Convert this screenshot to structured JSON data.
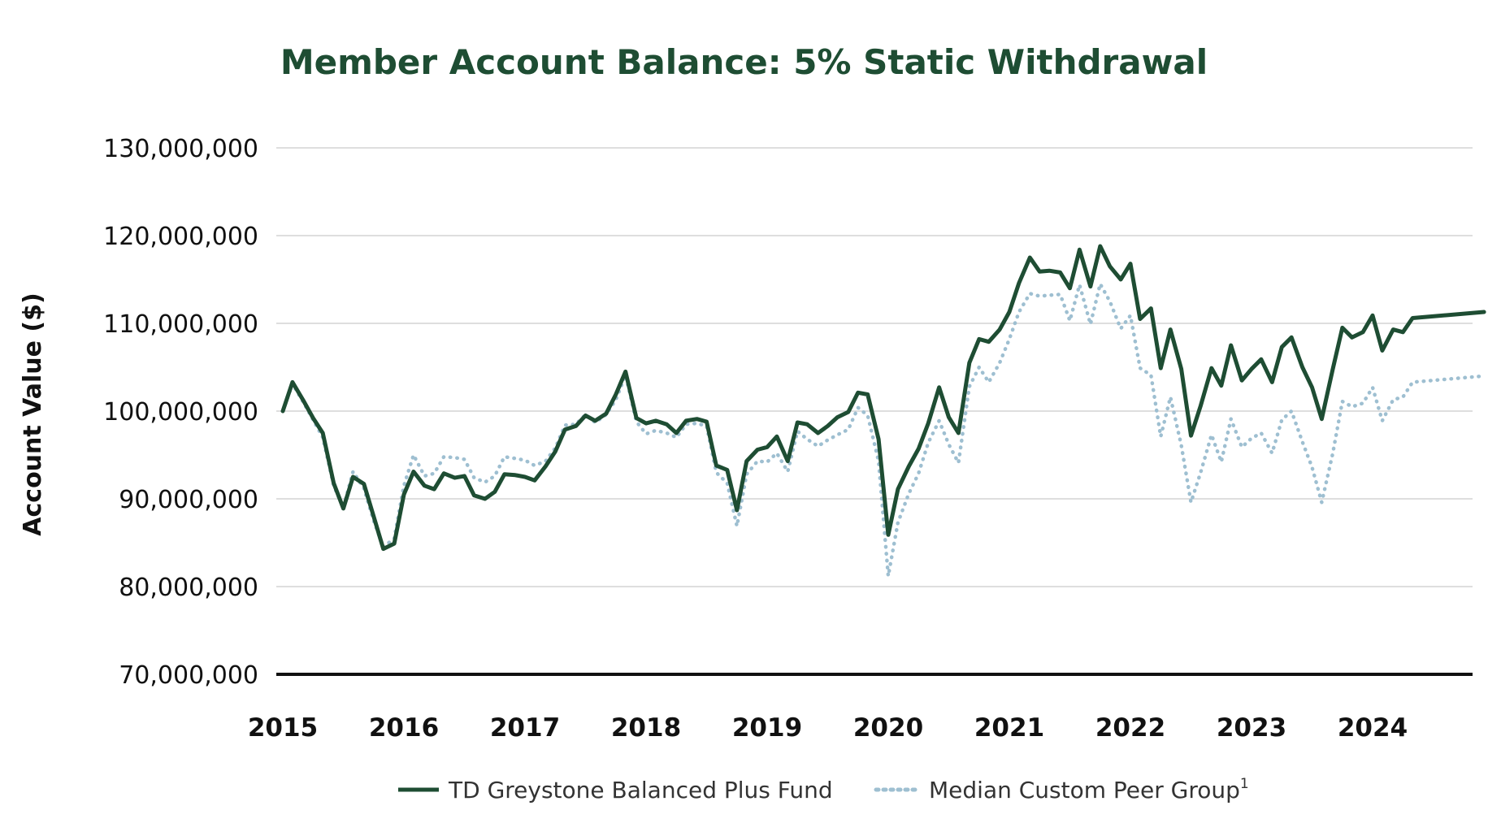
{
  "chart_data": {
    "type": "line",
    "title": "Member Account Balance: 5% Static Withdrawal",
    "ylabel": "Account Value ($)",
    "xlabel": "",
    "ylim": [
      70000000,
      130000000
    ],
    "xlim": [
      2015.0,
      2024.92
    ],
    "yticks": [
      {
        "value": 130000000,
        "label": "130,000,000"
      },
      {
        "value": 120000000,
        "label": "120,000,000"
      },
      {
        "value": 110000000,
        "label": "110,000,000"
      },
      {
        "value": 100000000,
        "label": "100,000,000"
      },
      {
        "value": 90000000,
        "label": "90,000,000"
      },
      {
        "value": 80000000,
        "label": "80,000,000"
      },
      {
        "value": 70000000,
        "label": "70,000,000"
      }
    ],
    "xticks": [
      {
        "value": 2015,
        "label": "2015"
      },
      {
        "value": 2016,
        "label": "2016"
      },
      {
        "value": 2017,
        "label": "2017"
      },
      {
        "value": 2018,
        "label": "2018"
      },
      {
        "value": 2019,
        "label": "2019"
      },
      {
        "value": 2020,
        "label": "2020"
      },
      {
        "value": 2021,
        "label": "2021"
      },
      {
        "value": 2022,
        "label": "2022"
      },
      {
        "value": 2023,
        "label": "2023"
      },
      {
        "value": 2024,
        "label": "2024"
      }
    ],
    "grid": true,
    "legend": "bottom",
    "series": [
      {
        "name": "TD Greystone Balanced Plus Fund",
        "color": "#1e4d33",
        "style": "solid",
        "points": [
          [
            2015.0,
            100000000
          ],
          [
            2015.08,
            103300000
          ],
          [
            2015.17,
            101200000
          ],
          [
            2015.25,
            99200000
          ],
          [
            2015.33,
            97500000
          ],
          [
            2015.42,
            91800000
          ],
          [
            2015.5,
            88900000
          ],
          [
            2015.58,
            92500000
          ],
          [
            2015.67,
            91700000
          ],
          [
            2015.75,
            88000000
          ],
          [
            2015.83,
            84300000
          ],
          [
            2015.92,
            84900000
          ],
          [
            2016.0,
            90500000
          ],
          [
            2016.08,
            93100000
          ],
          [
            2016.17,
            91500000
          ],
          [
            2016.25,
            91100000
          ],
          [
            2016.33,
            92900000
          ],
          [
            2016.42,
            92400000
          ],
          [
            2016.5,
            92600000
          ],
          [
            2016.58,
            90400000
          ],
          [
            2016.67,
            90000000
          ],
          [
            2016.75,
            90800000
          ],
          [
            2016.83,
            92800000
          ],
          [
            2016.92,
            92700000
          ],
          [
            2017.0,
            92500000
          ],
          [
            2017.08,
            92100000
          ],
          [
            2017.17,
            93700000
          ],
          [
            2017.25,
            95400000
          ],
          [
            2017.33,
            97900000
          ],
          [
            2017.42,
            98300000
          ],
          [
            2017.5,
            99500000
          ],
          [
            2017.58,
            98900000
          ],
          [
            2017.67,
            99700000
          ],
          [
            2017.75,
            101900000
          ],
          [
            2017.83,
            104500000
          ],
          [
            2017.92,
            99200000
          ],
          [
            2018.0,
            98600000
          ],
          [
            2018.08,
            98900000
          ],
          [
            2018.17,
            98500000
          ],
          [
            2018.25,
            97500000
          ],
          [
            2018.33,
            98900000
          ],
          [
            2018.42,
            99100000
          ],
          [
            2018.5,
            98800000
          ],
          [
            2018.58,
            93800000
          ],
          [
            2018.67,
            93300000
          ],
          [
            2018.75,
            88700000
          ],
          [
            2018.83,
            94300000
          ],
          [
            2018.92,
            95600000
          ],
          [
            2019.0,
            95900000
          ],
          [
            2019.08,
            97100000
          ],
          [
            2019.17,
            94300000
          ],
          [
            2019.25,
            98700000
          ],
          [
            2019.33,
            98500000
          ],
          [
            2019.42,
            97500000
          ],
          [
            2019.5,
            98300000
          ],
          [
            2019.58,
            99300000
          ],
          [
            2019.67,
            99900000
          ],
          [
            2019.75,
            102100000
          ],
          [
            2019.83,
            101900000
          ],
          [
            2019.92,
            96800000
          ],
          [
            2020.0,
            85900000
          ],
          [
            2020.08,
            91100000
          ],
          [
            2020.17,
            93700000
          ],
          [
            2020.25,
            95700000
          ],
          [
            2020.33,
            98600000
          ],
          [
            2020.42,
            102700000
          ],
          [
            2020.5,
            99300000
          ],
          [
            2020.58,
            97500000
          ],
          [
            2020.67,
            105500000
          ],
          [
            2020.75,
            108200000
          ],
          [
            2020.83,
            107900000
          ],
          [
            2020.92,
            109300000
          ],
          [
            2021.0,
            111300000
          ],
          [
            2021.08,
            114600000
          ],
          [
            2021.17,
            117500000
          ],
          [
            2021.25,
            115900000
          ],
          [
            2021.33,
            116000000
          ],
          [
            2021.42,
            115800000
          ],
          [
            2021.5,
            114000000
          ],
          [
            2021.58,
            118400000
          ],
          [
            2021.67,
            114200000
          ],
          [
            2021.75,
            118800000
          ],
          [
            2021.83,
            116500000
          ],
          [
            2021.92,
            115000000
          ],
          [
            2022.0,
            116800000
          ],
          [
            2022.08,
            110500000
          ],
          [
            2022.17,
            111700000
          ],
          [
            2022.25,
            104900000
          ],
          [
            2022.33,
            109300000
          ],
          [
            2022.42,
            104800000
          ],
          [
            2022.5,
            97200000
          ],
          [
            2022.58,
            100600000
          ],
          [
            2022.67,
            104900000
          ],
          [
            2022.75,
            102900000
          ],
          [
            2022.83,
            107500000
          ],
          [
            2022.92,
            103500000
          ],
          [
            2023.0,
            104800000
          ],
          [
            2023.08,
            105900000
          ],
          [
            2023.17,
            103300000
          ],
          [
            2023.25,
            107300000
          ],
          [
            2023.33,
            108400000
          ],
          [
            2023.42,
            105000000
          ],
          [
            2023.5,
            102700000
          ],
          [
            2023.58,
            99100000
          ],
          [
            2023.67,
            104700000
          ],
          [
            2023.75,
            109500000
          ],
          [
            2023.83,
            108400000
          ],
          [
            2023.92,
            109000000
          ],
          [
            2024.0,
            110900000
          ],
          [
            2024.08,
            106900000
          ],
          [
            2024.17,
            109300000
          ],
          [
            2024.25,
            109000000
          ],
          [
            2024.33,
            110600000
          ],
          [
            2024.92,
            111300000
          ]
        ]
      },
      {
        "name": "Median Custom Peer Group",
        "superscript": "1",
        "color": "#9ebfd1",
        "style": "dotted",
        "points": [
          [
            2015.0,
            100000000
          ],
          [
            2015.08,
            103100000
          ],
          [
            2015.17,
            101000000
          ],
          [
            2015.25,
            99000000
          ],
          [
            2015.33,
            97000000
          ],
          [
            2015.42,
            91500000
          ],
          [
            2015.5,
            89000000
          ],
          [
            2015.58,
            93100000
          ],
          [
            2015.67,
            91200000
          ],
          [
            2015.75,
            87500000
          ],
          [
            2015.83,
            84500000
          ],
          [
            2015.92,
            85500000
          ],
          [
            2016.0,
            91500000
          ],
          [
            2016.08,
            95000000
          ],
          [
            2016.17,
            92600000
          ],
          [
            2016.25,
            92900000
          ],
          [
            2016.33,
            94800000
          ],
          [
            2016.42,
            94700000
          ],
          [
            2016.5,
            94500000
          ],
          [
            2016.58,
            92400000
          ],
          [
            2016.67,
            91900000
          ],
          [
            2016.75,
            92600000
          ],
          [
            2016.83,
            94800000
          ],
          [
            2016.92,
            94600000
          ],
          [
            2017.0,
            94400000
          ],
          [
            2017.08,
            93800000
          ],
          [
            2017.17,
            94300000
          ],
          [
            2017.25,
            95800000
          ],
          [
            2017.33,
            98400000
          ],
          [
            2017.42,
            98500000
          ],
          [
            2017.5,
            99600000
          ],
          [
            2017.58,
            98700000
          ],
          [
            2017.67,
            99600000
          ],
          [
            2017.75,
            101300000
          ],
          [
            2017.83,
            104100000
          ],
          [
            2017.92,
            98800000
          ],
          [
            2018.0,
            97400000
          ],
          [
            2018.08,
            97800000
          ],
          [
            2018.17,
            97500000
          ],
          [
            2018.25,
            97000000
          ],
          [
            2018.33,
            98500000
          ],
          [
            2018.42,
            98600000
          ],
          [
            2018.5,
            98300000
          ],
          [
            2018.58,
            93000000
          ],
          [
            2018.67,
            91800000
          ],
          [
            2018.75,
            86900000
          ],
          [
            2018.83,
            92800000
          ],
          [
            2018.92,
            94300000
          ],
          [
            2019.0,
            94200000
          ],
          [
            2019.08,
            95200000
          ],
          [
            2019.17,
            93100000
          ],
          [
            2019.25,
            97700000
          ],
          [
            2019.33,
            96800000
          ],
          [
            2019.42,
            96000000
          ],
          [
            2019.5,
            96700000
          ],
          [
            2019.58,
            97300000
          ],
          [
            2019.67,
            97900000
          ],
          [
            2019.75,
            100400000
          ],
          [
            2019.83,
            99500000
          ],
          [
            2019.92,
            94300000
          ],
          [
            2020.0,
            81200000
          ],
          [
            2020.08,
            87300000
          ],
          [
            2020.17,
            90600000
          ],
          [
            2020.25,
            92900000
          ],
          [
            2020.33,
            96400000
          ],
          [
            2020.42,
            98900000
          ],
          [
            2020.5,
            96200000
          ],
          [
            2020.58,
            94100000
          ],
          [
            2020.67,
            102800000
          ],
          [
            2020.75,
            105000000
          ],
          [
            2020.83,
            103300000
          ],
          [
            2020.92,
            105500000
          ],
          [
            2021.0,
            108200000
          ],
          [
            2021.08,
            111300000
          ],
          [
            2021.17,
            113400000
          ],
          [
            2021.25,
            113100000
          ],
          [
            2021.33,
            113200000
          ],
          [
            2021.42,
            113300000
          ],
          [
            2021.5,
            110300000
          ],
          [
            2021.58,
            114400000
          ],
          [
            2021.67,
            109900000
          ],
          [
            2021.75,
            114500000
          ],
          [
            2021.83,
            112500000
          ],
          [
            2021.92,
            109400000
          ],
          [
            2022.0,
            110900000
          ],
          [
            2022.08,
            104900000
          ],
          [
            2022.17,
            104100000
          ],
          [
            2022.25,
            97100000
          ],
          [
            2022.33,
            101600000
          ],
          [
            2022.42,
            96100000
          ],
          [
            2022.5,
            89600000
          ],
          [
            2022.58,
            93000000
          ],
          [
            2022.67,
            97300000
          ],
          [
            2022.75,
            94200000
          ],
          [
            2022.83,
            99100000
          ],
          [
            2022.92,
            95900000
          ],
          [
            2023.0,
            96900000
          ],
          [
            2023.08,
            97500000
          ],
          [
            2023.17,
            95200000
          ],
          [
            2023.25,
            99000000
          ],
          [
            2023.33,
            100000000
          ],
          [
            2023.42,
            96500000
          ],
          [
            2023.5,
            93600000
          ],
          [
            2023.58,
            89600000
          ],
          [
            2023.67,
            95100000
          ],
          [
            2023.75,
            101100000
          ],
          [
            2023.83,
            100500000
          ],
          [
            2023.92,
            100900000
          ],
          [
            2024.0,
            102700000
          ],
          [
            2024.08,
            98900000
          ],
          [
            2024.17,
            101300000
          ],
          [
            2024.25,
            101600000
          ],
          [
            2024.33,
            103300000
          ],
          [
            2024.92,
            104000000
          ]
        ]
      }
    ]
  }
}
